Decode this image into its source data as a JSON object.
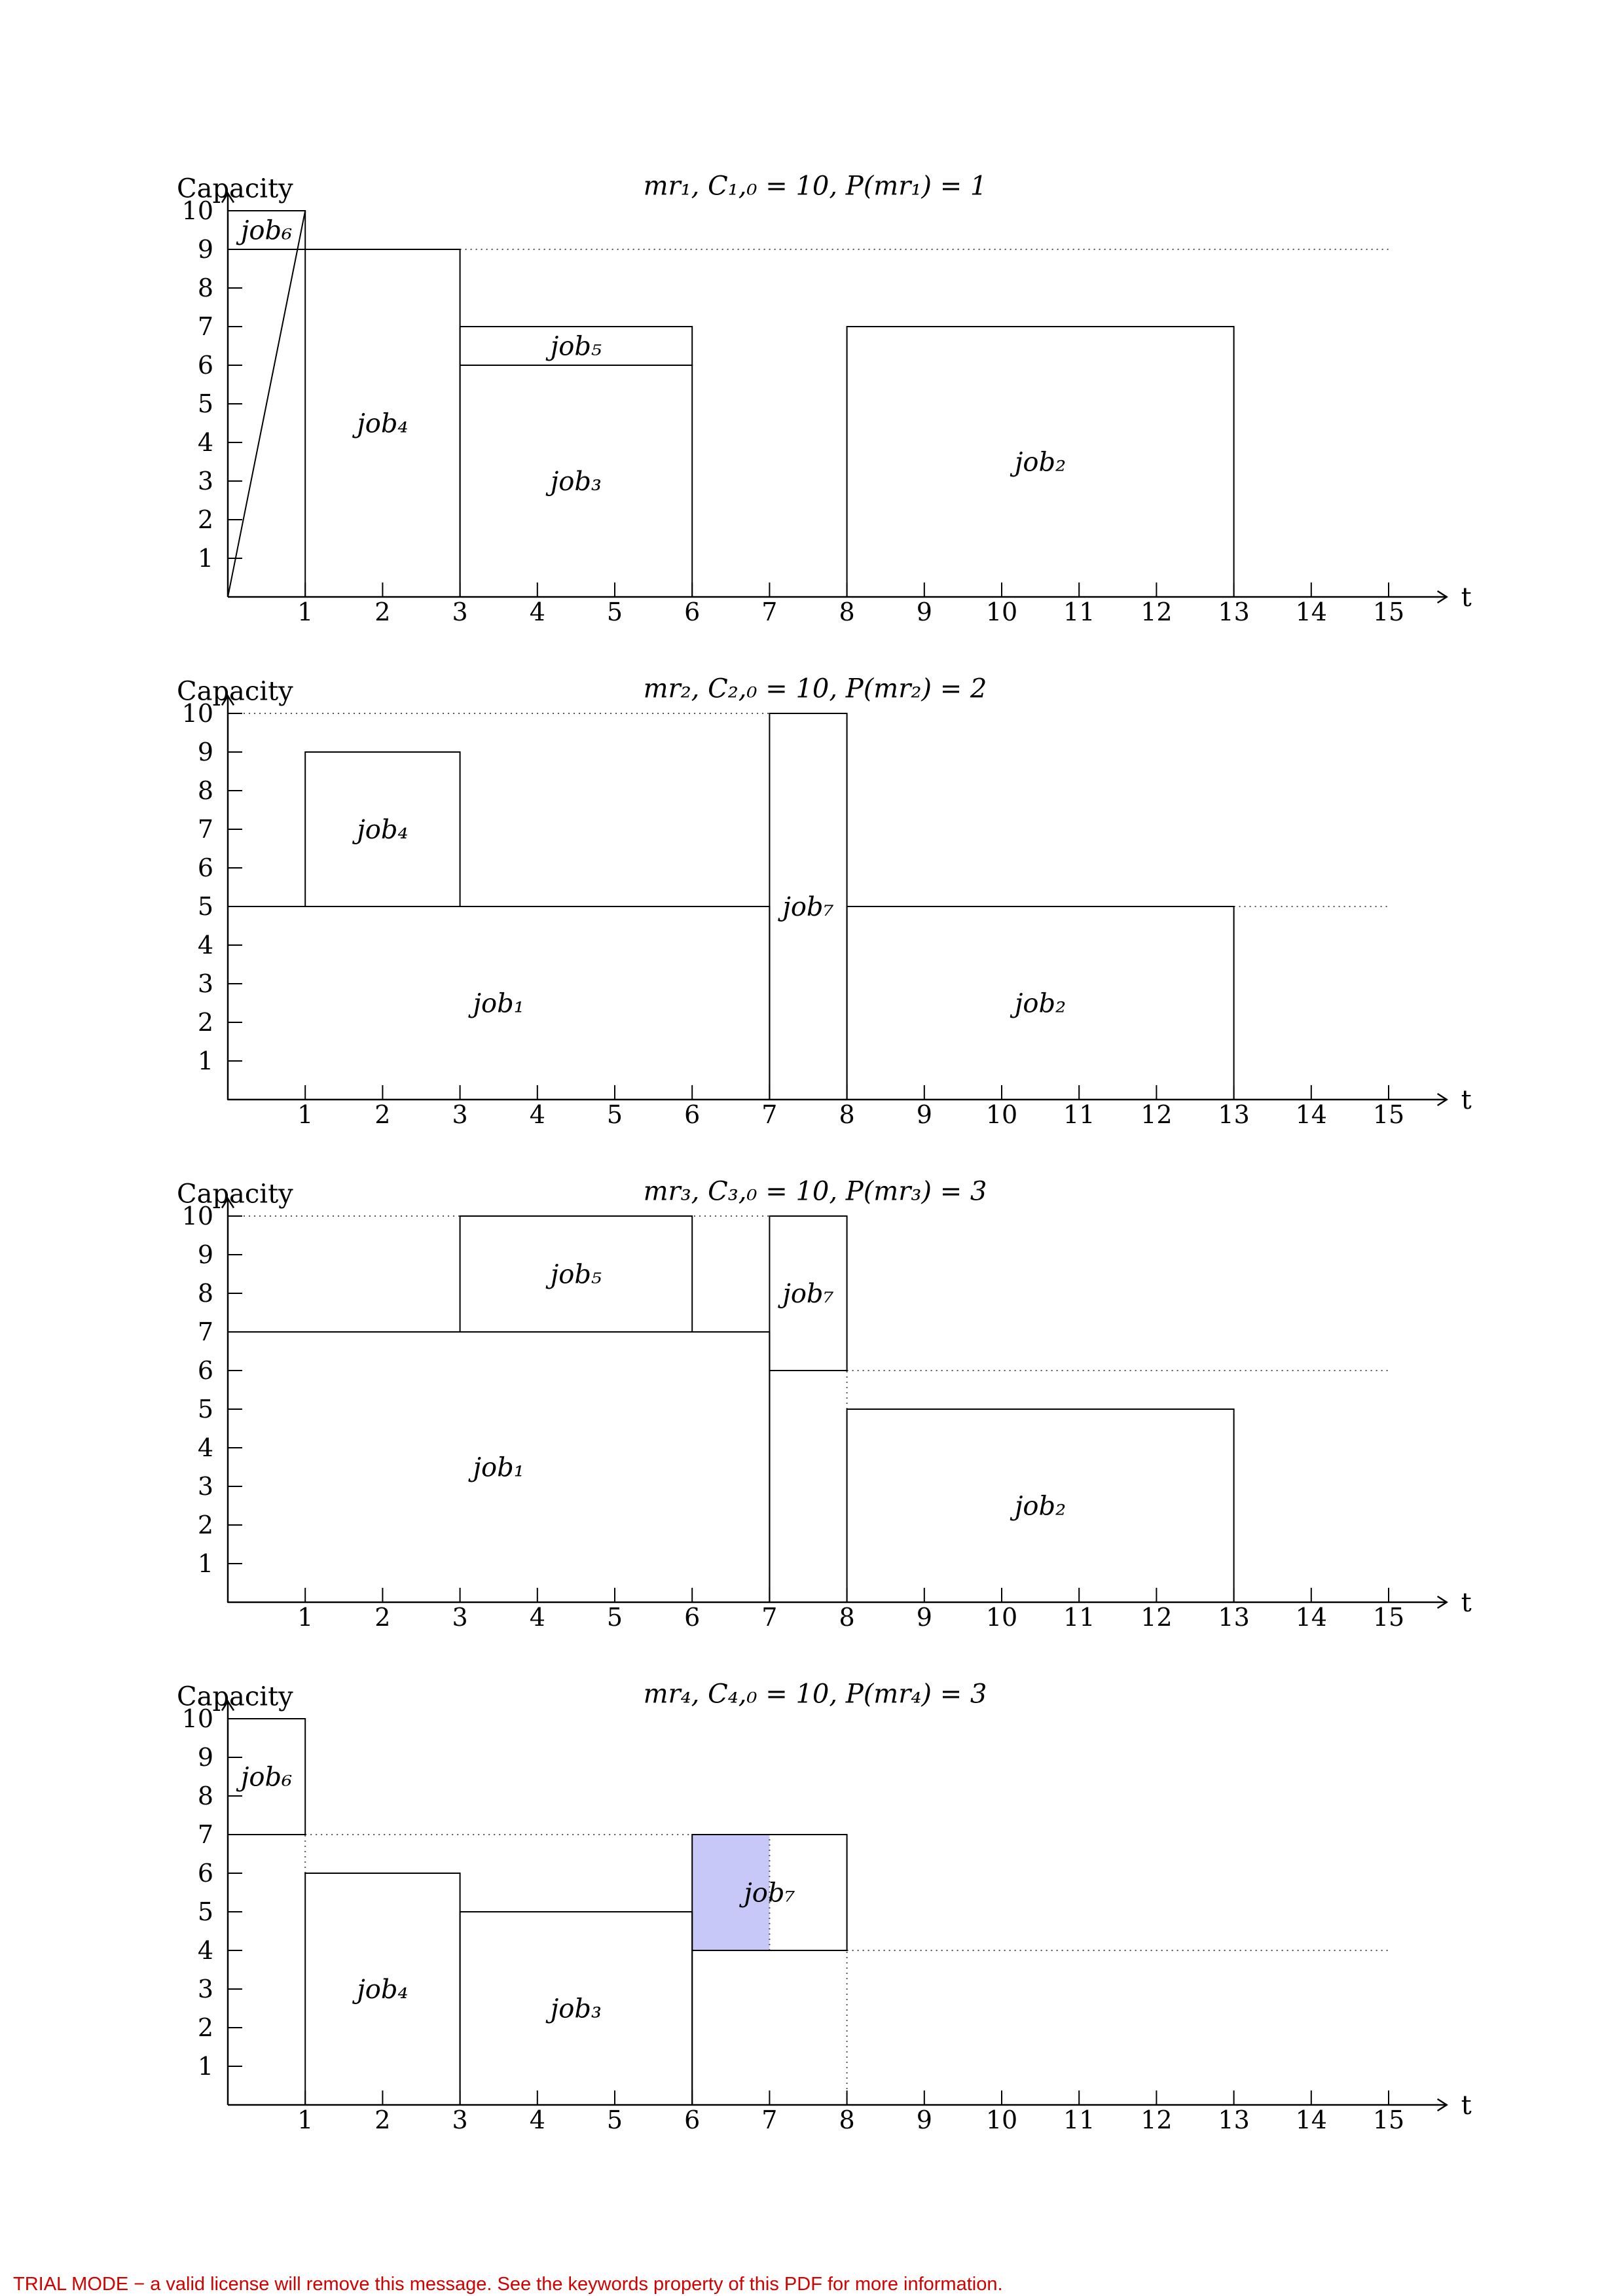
{
  "chart_data": [
    {
      "type": "bar",
      "title": "mr₁, C₁,₀ = 10, P(mr₁) = 1",
      "ylabel": "Capacity",
      "xlabel": "t",
      "xlim": [
        0,
        15
      ],
      "ylim": [
        0,
        10
      ],
      "xticks": [
        "1",
        "2",
        "3",
        "4",
        "5",
        "6",
        "7",
        "8",
        "9",
        "10",
        "11",
        "12",
        "13",
        "14",
        "15"
      ],
      "yticks": [
        "1",
        "2",
        "3",
        "4",
        "5",
        "6",
        "7",
        "8",
        "9",
        "10"
      ],
      "jobs": [
        {
          "label": "job₆",
          "x": [
            0,
            1
          ],
          "y": [
            9,
            10
          ],
          "fill": "none"
        },
        {
          "label": "job₄",
          "x": [
            1,
            3
          ],
          "y": [
            0,
            9
          ],
          "fill": "none"
        },
        {
          "label": "job₃",
          "x": [
            3,
            6
          ],
          "y": [
            0,
            6
          ],
          "fill": "none"
        },
        {
          "label": "job₅",
          "x": [
            3,
            6
          ],
          "y": [
            6,
            7
          ],
          "fill": "none"
        },
        {
          "label": "job₂",
          "x": [
            8,
            13
          ],
          "y": [
            0,
            7
          ],
          "fill": "none"
        }
      ],
      "extra_lines": [
        {
          "x": [
            0,
            1
          ],
          "y": [
            0,
            10
          ]
        },
        {
          "x": [
            0,
            1
          ],
          "y": [
            10,
            10
          ]
        }
      ],
      "reference_lines": [
        {
          "x": [
            3,
            15
          ],
          "y": [
            9,
            9
          ],
          "style": "dotted"
        }
      ]
    },
    {
      "type": "bar",
      "title": "mr₂, C₂,₀ = 10, P(mr₂) = 2",
      "ylabel": "Capacity",
      "xlabel": "t",
      "xlim": [
        0,
        15
      ],
      "ylim": [
        0,
        10
      ],
      "xticks": [
        "1",
        "2",
        "3",
        "4",
        "5",
        "6",
        "7",
        "8",
        "9",
        "10",
        "11",
        "12",
        "13",
        "14",
        "15"
      ],
      "yticks": [
        "1",
        "2",
        "3",
        "4",
        "5",
        "6",
        "7",
        "8",
        "9",
        "10"
      ],
      "jobs": [
        {
          "label": "job₁",
          "x": [
            0,
            7
          ],
          "y": [
            0,
            5
          ],
          "fill": "none"
        },
        {
          "label": "job₄",
          "x": [
            1,
            3
          ],
          "y": [
            5,
            9
          ],
          "fill": "none"
        },
        {
          "label": "job₇",
          "x": [
            7,
            8
          ],
          "y": [
            0,
            10
          ],
          "fill": "none"
        },
        {
          "label": "job₂",
          "x": [
            8,
            13
          ],
          "y": [
            0,
            5
          ],
          "fill": "none"
        }
      ],
      "extra_lines": [],
      "reference_lines": [
        {
          "x": [
            0,
            7
          ],
          "y": [
            10,
            10
          ],
          "style": "dotted"
        },
        {
          "x": [
            13,
            15
          ],
          "y": [
            5,
            5
          ],
          "style": "dotted"
        }
      ]
    },
    {
      "type": "bar",
      "title": "mr₃, C₃,₀ = 10, P(mr₃) = 3",
      "ylabel": "Capacity",
      "xlabel": "t",
      "xlim": [
        0,
        15
      ],
      "ylim": [
        0,
        10
      ],
      "xticks": [
        "1",
        "2",
        "3",
        "4",
        "5",
        "6",
        "7",
        "8",
        "9",
        "10",
        "11",
        "12",
        "13",
        "14",
        "15"
      ],
      "yticks": [
        "1",
        "2",
        "3",
        "4",
        "5",
        "6",
        "7",
        "8",
        "9",
        "10"
      ],
      "jobs": [
        {
          "label": "job₁",
          "x": [
            0,
            7
          ],
          "y": [
            0,
            7
          ],
          "fill": "none"
        },
        {
          "label": "job₅",
          "x": [
            3,
            6
          ],
          "y": [
            7,
            10
          ],
          "fill": "none"
        },
        {
          "label": "job₇",
          "x": [
            7,
            8
          ],
          "y": [
            6,
            10
          ],
          "fill": "none"
        },
        {
          "label": "job₂",
          "x": [
            8,
            13
          ],
          "y": [
            0,
            5
          ],
          "fill": "none"
        }
      ],
      "extra_lines": [
        {
          "x": [
            7,
            7
          ],
          "y": [
            0,
            6
          ]
        }
      ],
      "reference_lines": [
        {
          "x": [
            0,
            7
          ],
          "y": [
            10,
            10
          ],
          "style": "dotted"
        },
        {
          "x": [
            8,
            15
          ],
          "y": [
            6,
            6
          ],
          "style": "dotted"
        },
        {
          "x": [
            8,
            8
          ],
          "y": [
            5,
            6
          ],
          "style": "dotted"
        }
      ]
    },
    {
      "type": "bar",
      "title": "mr₄, C₄,₀ = 10, P(mr₄) = 3",
      "ylabel": "Capacity",
      "xlabel": "t",
      "xlim": [
        0,
        15
      ],
      "ylim": [
        0,
        10
      ],
      "xticks": [
        "1",
        "2",
        "3",
        "4",
        "5",
        "6",
        "7",
        "8",
        "9",
        "10",
        "11",
        "12",
        "13",
        "14",
        "15"
      ],
      "yticks": [
        "1",
        "2",
        "3",
        "4",
        "5",
        "6",
        "7",
        "8",
        "9",
        "10"
      ],
      "jobs": [
        {
          "label": "job₆",
          "x": [
            0,
            1
          ],
          "y": [
            7,
            10
          ],
          "fill": "none"
        },
        {
          "label": "job₄",
          "x": [
            1,
            3
          ],
          "y": [
            0,
            6
          ],
          "fill": "none"
        },
        {
          "label": "job₃",
          "x": [
            3,
            6
          ],
          "y": [
            0,
            5
          ],
          "fill": "none"
        },
        {
          "label": "job₇",
          "x": [
            6,
            8
          ],
          "y": [
            4,
            7
          ],
          "fill": "none"
        }
      ],
      "highlights": [
        {
          "x": [
            6,
            7
          ],
          "y": [
            4,
            7
          ],
          "fill": "#c8c8f8"
        }
      ],
      "extra_lines": [
        {
          "x": [
            6,
            6
          ],
          "y": [
            0,
            4
          ]
        }
      ],
      "reference_lines": [
        {
          "x": [
            1,
            6
          ],
          "y": [
            7,
            7
          ],
          "style": "dotted"
        },
        {
          "x": [
            1,
            1
          ],
          "y": [
            6,
            7
          ],
          "style": "dotted"
        },
        {
          "x": [
            7,
            7
          ],
          "y": [
            4,
            7
          ],
          "style": "dotted"
        },
        {
          "x": [
            8,
            15
          ],
          "y": [
            4,
            4
          ],
          "style": "dotted"
        },
        {
          "x": [
            8,
            8
          ],
          "y": [
            0,
            4
          ],
          "style": "dotted"
        }
      ]
    }
  ],
  "footer": {
    "notice": "TRIAL MODE − a valid license will remove this message. See the keywords property of this PDF for more information."
  }
}
